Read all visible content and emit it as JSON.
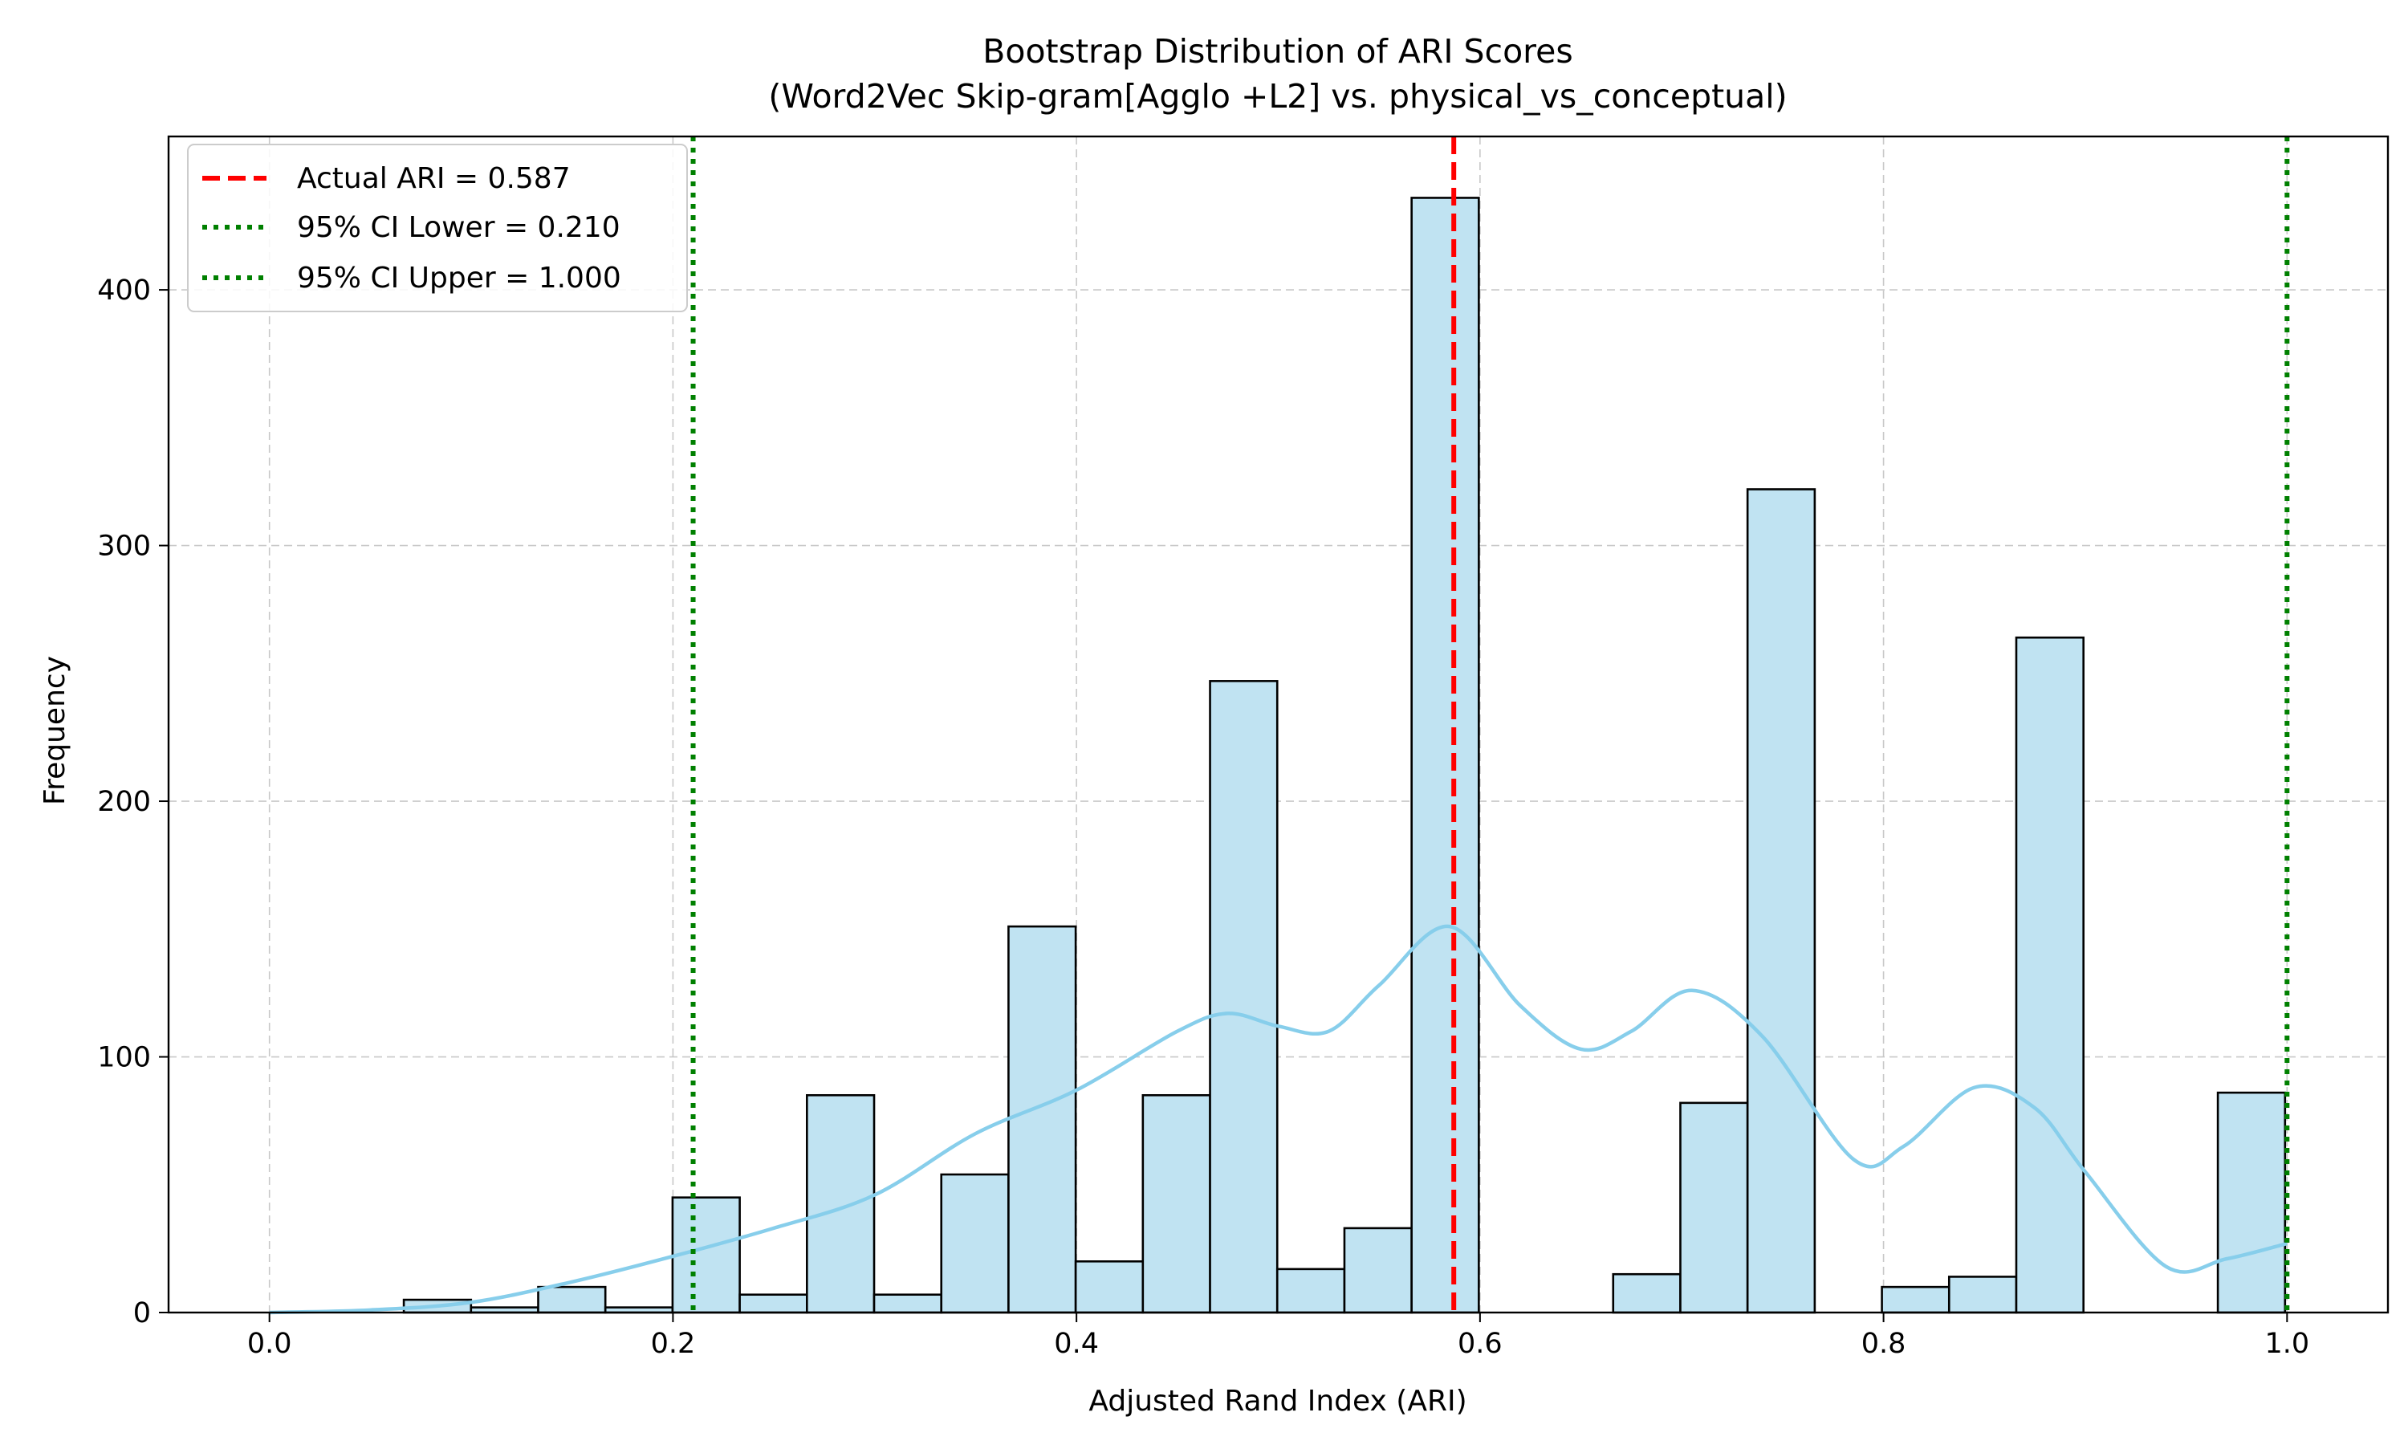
{
  "chart_data": {
    "type": "bar",
    "title": "Bootstrap Distribution of ARI Scores",
    "subtitle": "(Word2Vec Skip-gram[Agglo +L2] vs. physical_vs_conceptual)",
    "xlabel": "Adjusted Rand Index (ARI)",
    "ylabel": "Frequency",
    "xlim": [
      -0.05,
      1.05
    ],
    "ylim": [
      0,
      460
    ],
    "xticks": [
      0.0,
      0.2,
      0.4,
      0.6,
      0.8,
      1.0
    ],
    "xtick_labels": [
      "0.0",
      "0.2",
      "0.4",
      "0.6",
      "0.8",
      "1.0"
    ],
    "yticks": [
      0,
      100,
      200,
      300,
      400
    ],
    "ytick_labels": [
      "0",
      "100",
      "200",
      "300",
      "400"
    ],
    "grid": true,
    "legend_position": "top-left",
    "bin_start": 0.0,
    "bin_width": 0.0333,
    "values": [
      0,
      0,
      5,
      2,
      10,
      2,
      45,
      7,
      85,
      7,
      54,
      151,
      20,
      85,
      247,
      17,
      33,
      436,
      0,
      0,
      15,
      82,
      322,
      0,
      10,
      14,
      264,
      0,
      0,
      86
    ],
    "kde": {
      "name": "KDE",
      "x": [
        0.0,
        0.05,
        0.1,
        0.15,
        0.2,
        0.25,
        0.3,
        0.35,
        0.4,
        0.45,
        0.475,
        0.5,
        0.525,
        0.55,
        0.585,
        0.62,
        0.65,
        0.675,
        0.705,
        0.74,
        0.785,
        0.81,
        0.845,
        0.875,
        0.9,
        0.94,
        0.97,
        1.0
      ],
      "y": [
        0,
        1,
        4,
        12,
        22,
        33,
        46,
        70,
        87,
        110,
        117,
        112,
        110,
        128,
        151,
        120,
        103,
        110,
        126,
        108,
        60,
        65,
        88,
        80,
        55,
        18,
        21,
        27
      ]
    },
    "reference_lines": [
      {
        "name": "Actual ARI = 0.587",
        "x": 0.587,
        "color": "#ff0000",
        "style": "dashed"
      },
      {
        "name": "95% CI Lower = 0.210",
        "x": 0.21,
        "color": "#008000",
        "style": "dotted"
      },
      {
        "name": "95% CI Upper = 1.000",
        "x": 1.0,
        "color": "#008000",
        "style": "dotted"
      }
    ],
    "colors": {
      "bar_fill": "#c0e3f2",
      "bar_edge": "#000000",
      "kde": "#87ceeb"
    }
  }
}
